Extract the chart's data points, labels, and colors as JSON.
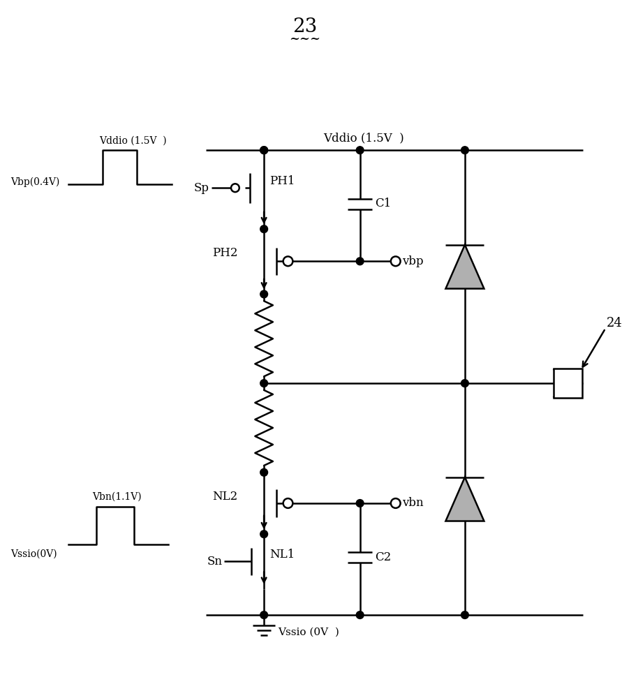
{
  "title": "23",
  "title_tilde": "~~~",
  "vddio_label": "Vddio (1.5V  )",
  "vssio_label": "Vssio (0V  )",
  "vbp_label": "vbp",
  "vbn_label": "vbn",
  "ph1_label": "PH1",
  "ph2_label": "PH2",
  "nl1_label": "NL1",
  "nl2_label": "NL2",
  "sp_label": "Sp",
  "sn_label": "Sn",
  "c1_label": "C1",
  "c2_label": "C2",
  "label24": "24",
  "wf_top_hi": "Vddio (1.5V  )",
  "wf_top_lo": "Vbp(0.4V)",
  "wf_bot_hi": "Vbn(1.1V)",
  "wf_bot_lo": "Vssio(0V)",
  "line_color": "#000000",
  "bg_color": "#ffffff"
}
